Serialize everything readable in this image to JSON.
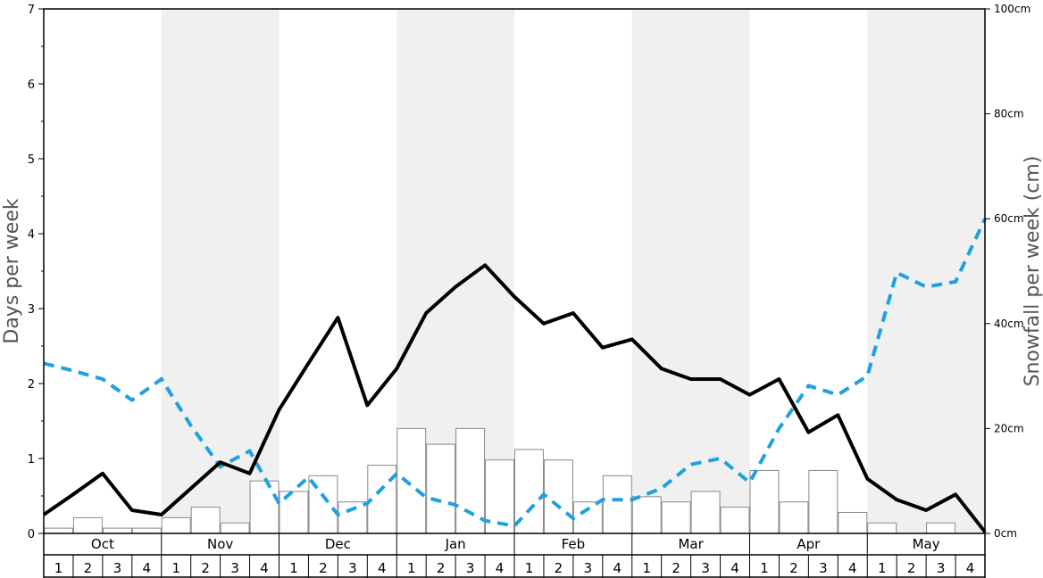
{
  "chart_data": {
    "type": "bar+line",
    "title": "",
    "ylabel_left": "Days per week",
    "ylabel_right": "Snowfall per week (cm)",
    "ylim_left": [
      0,
      7
    ],
    "ylim_right": [
      0,
      100
    ],
    "yticks_left": [
      "0",
      "1",
      "2",
      "3",
      "4",
      "5",
      "6",
      "7"
    ],
    "yticks_right": [
      "0cm",
      "20cm",
      "40cm",
      "60cm",
      "80cm",
      "100cm"
    ],
    "months": [
      "Oct",
      "Nov",
      "Dec",
      "Jan",
      "Feb",
      "Mar",
      "Apr",
      "May"
    ],
    "weeks": [
      "1",
      "2",
      "3",
      "4"
    ],
    "shaded_months": [
      "Nov",
      "Jan",
      "Mar",
      "May"
    ],
    "colors": {
      "snow_days_line": "#000000",
      "other_days_line": "#1ea1e0",
      "bars_stroke": "#888888",
      "shade": "#f0f0f0"
    },
    "series": [
      {
        "axis": "right",
        "style": "bar",
        "unit": "cm",
        "values": [
          1,
          3,
          1,
          1,
          3,
          5,
          2,
          10,
          8,
          11,
          6,
          13,
          20,
          17,
          20,
          14,
          16,
          14,
          6,
          11,
          7,
          6,
          8,
          5,
          12,
          6,
          12,
          4,
          2,
          0,
          2,
          0
        ]
      },
      {
        "axis": "left",
        "style": "solid",
        "values": [
          0.25,
          0.52,
          0.8,
          0.31,
          0.25,
          0.6,
          0.95,
          0.8,
          1.65,
          2.27,
          2.88,
          1.71,
          2.2,
          2.94,
          3.29,
          3.58,
          3.16,
          2.8,
          2.94,
          2.48,
          2.59,
          2.2,
          2.06,
          2.06,
          1.85,
          2.06,
          1.35,
          1.58,
          0.73,
          0.45,
          0.31,
          0.52,
          0.02
        ]
      },
      {
        "axis": "left",
        "style": "dashed",
        "values": [
          2.27,
          2.17,
          2.06,
          1.78,
          2.06,
          1.44,
          0.89,
          1.1,
          0.4,
          0.75,
          0.25,
          0.4,
          0.8,
          0.48,
          0.38,
          0.17,
          0.1,
          0.52,
          0.2,
          0.45,
          0.45,
          0.6,
          0.92,
          1.0,
          0.68,
          1.4,
          1.97,
          1.85,
          2.1,
          3.48,
          3.29,
          3.36,
          4.2
        ]
      }
    ]
  }
}
